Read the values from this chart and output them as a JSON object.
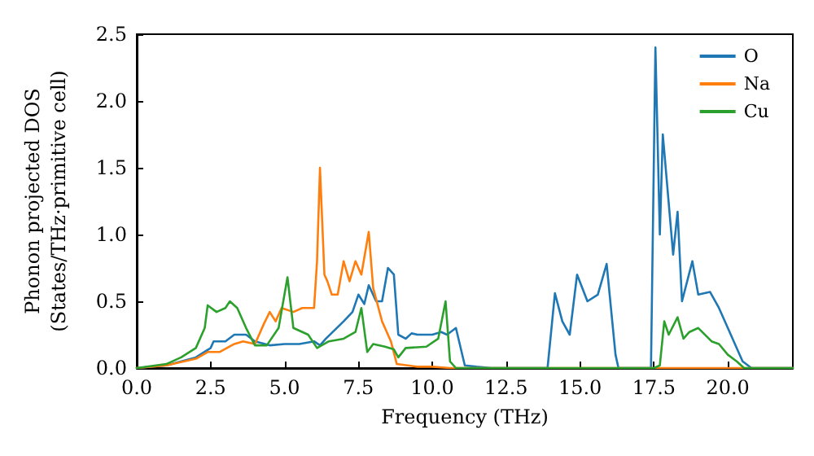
{
  "chart_data": {
    "type": "line",
    "xlabel": "Frequency (THz)",
    "ylabel": "Phonon projected DOS\n(States/THz·primitive cell)",
    "xlim": [
      0,
      22.2
    ],
    "ylim": [
      0,
      2.5
    ],
    "xticks": [
      {
        "value": 0,
        "label": "0.0"
      },
      {
        "value": 2.5,
        "label": "2.5"
      },
      {
        "value": 5,
        "label": "5.0"
      },
      {
        "value": 7.5,
        "label": "7.5"
      },
      {
        "value": 10,
        "label": "10.0"
      },
      {
        "value": 12.5,
        "label": "12.5"
      },
      {
        "value": 15,
        "label": "15.0"
      },
      {
        "value": 17.5,
        "label": "17.5"
      },
      {
        "value": 20,
        "label": "20.0"
      }
    ],
    "yticks": [
      {
        "value": 0,
        "label": "0.0"
      },
      {
        "value": 0.5,
        "label": "0.5"
      },
      {
        "value": 1,
        "label": "1.0"
      },
      {
        "value": 1.5,
        "label": "1.5"
      },
      {
        "value": 2,
        "label": "2.0"
      },
      {
        "value": 2.5,
        "label": "2.5"
      }
    ],
    "grid": false,
    "legend": "top right",
    "marker": "none",
    "line_style": "solid",
    "series": [
      {
        "name": "O",
        "color": "#1f77b4",
        "x": [
          0,
          1,
          2,
          2.5,
          2.6,
          3,
          3.3,
          3.7,
          4,
          4.5,
          5,
          5.5,
          6,
          6.2,
          6.4,
          7,
          7.3,
          7.5,
          7.7,
          7.85,
          8.1,
          8.3,
          8.5,
          8.7,
          8.85,
          9.1,
          9.3,
          9.5,
          9.8,
          10,
          10.3,
          10.5,
          10.8,
          11.1,
          11.5,
          12,
          13.9,
          14.15,
          14.4,
          14.65,
          14.9,
          15.25,
          15.6,
          15.9,
          16.2,
          16.3,
          17.4,
          17.55,
          17.7,
          17.8,
          18.15,
          18.3,
          18.45,
          18.8,
          19,
          19.4,
          19.7,
          20,
          20.5,
          20.8,
          22.2
        ],
        "values": [
          0,
          0.02,
          0.08,
          0.15,
          0.2,
          0.2,
          0.25,
          0.25,
          0.2,
          0.17,
          0.18,
          0.18,
          0.2,
          0.17,
          0.22,
          0.35,
          0.42,
          0.55,
          0.48,
          0.62,
          0.5,
          0.5,
          0.75,
          0.7,
          0.25,
          0.22,
          0.26,
          0.25,
          0.25,
          0.25,
          0.27,
          0.25,
          0.3,
          0.02,
          0.01,
          0,
          0,
          0.56,
          0.35,
          0.25,
          0.7,
          0.5,
          0.55,
          0.78,
          0.1,
          0,
          0,
          2.4,
          1.0,
          1.75,
          0.85,
          1.17,
          0.5,
          0.8,
          0.55,
          0.57,
          0.45,
          0.3,
          0.05,
          0,
          0
        ]
      },
      {
        "name": "Na",
        "color": "#ff7f0e",
        "x": [
          0,
          1,
          2,
          2.4,
          2.8,
          3.3,
          3.6,
          4,
          4.3,
          4.5,
          4.7,
          4.9,
          5.3,
          5.6,
          6,
          6.1,
          6.2,
          6.35,
          6.45,
          6.6,
          6.8,
          7,
          7.2,
          7.4,
          7.6,
          7.85,
          8,
          8.3,
          8.6,
          8.8,
          9.5,
          10,
          10.6,
          22.2
        ],
        "values": [
          0,
          0.02,
          0.07,
          0.12,
          0.12,
          0.18,
          0.2,
          0.18,
          0.33,
          0.42,
          0.35,
          0.45,
          0.42,
          0.45,
          0.45,
          0.8,
          1.5,
          0.7,
          0.65,
          0.55,
          0.55,
          0.8,
          0.65,
          0.8,
          0.7,
          1.02,
          0.6,
          0.35,
          0.2,
          0.03,
          0.01,
          0.01,
          0,
          0
        ]
      },
      {
        "name": "Cu",
        "color": "#2ca02c",
        "x": [
          0,
          1,
          1.5,
          2,
          2.3,
          2.4,
          2.7,
          3,
          3.15,
          3.4,
          3.7,
          4,
          4.4,
          4.8,
          5.1,
          5.3,
          5.8,
          6.1,
          6.5,
          7,
          7.4,
          7.6,
          7.8,
          8,
          8.4,
          8.7,
          8.85,
          9.1,
          9.8,
          10.2,
          10.45,
          10.6,
          10.8,
          17.5,
          17.7,
          17.85,
          18,
          18.3,
          18.5,
          18.7,
          19,
          19.45,
          19.7,
          20,
          20.3,
          20.55,
          22.2
        ],
        "values": [
          0,
          0.03,
          0.08,
          0.15,
          0.3,
          0.47,
          0.42,
          0.45,
          0.5,
          0.45,
          0.3,
          0.17,
          0.17,
          0.3,
          0.68,
          0.3,
          0.25,
          0.15,
          0.2,
          0.22,
          0.27,
          0.45,
          0.12,
          0.18,
          0.16,
          0.14,
          0.08,
          0.15,
          0.16,
          0.22,
          0.5,
          0.05,
          0,
          0,
          0.02,
          0.35,
          0.25,
          0.38,
          0.22,
          0.27,
          0.3,
          0.2,
          0.18,
          0.1,
          0.05,
          0,
          0
        ]
      }
    ]
  }
}
